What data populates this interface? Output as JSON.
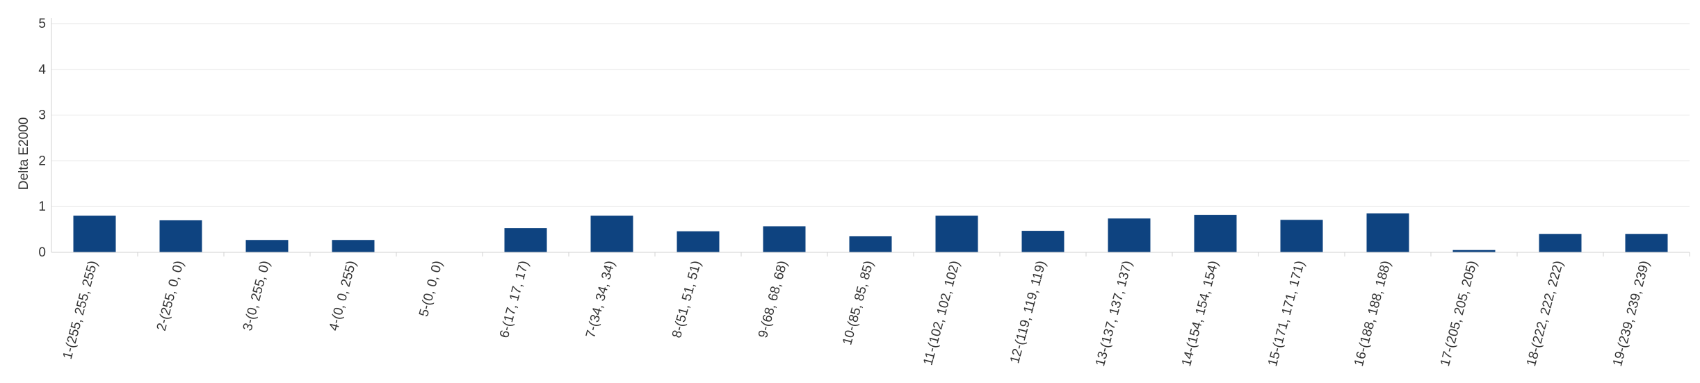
{
  "chart_data": {
    "type": "bar",
    "title": "",
    "ylabel": "Delta E2000",
    "xlabel": "",
    "ylim": [
      0,
      5
    ],
    "yticks": [
      "0",
      "1",
      "2",
      "3",
      "4",
      "5"
    ],
    "grid": true,
    "legend": "none",
    "bar_color": "#0e4380",
    "categories": [
      "1-(255, 255, 255)",
      "2-(255, 0, 0)",
      "3-(0, 255, 0)",
      "4-(0, 0, 255)",
      "5-(0, 0, 0)",
      "6-(17, 17, 17)",
      "7-(34, 34, 34)",
      "8-(51, 51, 51)",
      "9-(68, 68, 68)",
      "10-(85, 85, 85)",
      "11-(102, 102, 102)",
      "12-(119, 119, 119)",
      "13-(137, 137, 137)",
      "14-(154, 154, 154)",
      "15-(171, 171, 171)",
      "16-(188, 188, 188)",
      "17-(205, 205, 205)",
      "18-(222, 222, 222)",
      "19-(239, 239, 239)"
    ],
    "values": [
      0.8,
      0.7,
      0.27,
      0.27,
      0.0,
      0.53,
      0.8,
      0.46,
      0.57,
      0.35,
      0.8,
      0.47,
      0.74,
      0.82,
      0.71,
      0.85,
      0.05,
      0.4,
      0.4
    ]
  }
}
